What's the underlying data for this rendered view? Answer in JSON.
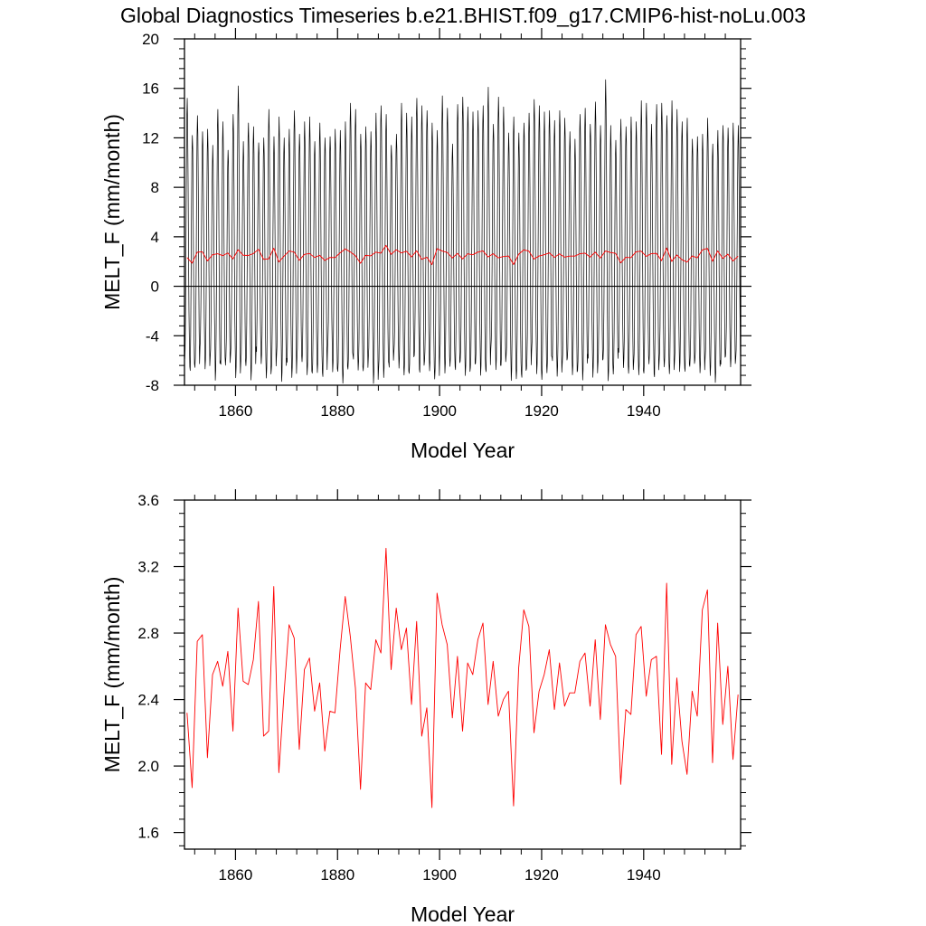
{
  "figure": {
    "title": "Global Diagnostics Timeseries b.e21.BHIST.f09_g17.CMIP6-hist-noLu.003"
  },
  "colors": {
    "monthly_series": "#000000",
    "annual_series": "#ff0000",
    "zero_line": "#000000",
    "frame": "#000000",
    "background": "#ffffff"
  },
  "chart_data": [
    {
      "type": "line",
      "xlabel": "Model Year",
      "ylabel": "MELT_F (mm/month)",
      "xlim": [
        1850,
        1959
      ],
      "ylim": [
        -8,
        20
      ],
      "x_ticks": [
        1860,
        1880,
        1900,
        1920,
        1940
      ],
      "x_tick_labels": [
        "1860",
        "1880",
        "1900",
        "1920",
        "1940"
      ],
      "y_ticks": [
        -8,
        -4,
        0,
        4,
        8,
        12,
        16,
        20
      ],
      "y_tick_labels": [
        "-8",
        "-4",
        "0",
        "4",
        "8",
        "12",
        "16",
        "20"
      ],
      "reference_line_y": 0,
      "grid": false,
      "series": [
        {
          "color": "#000000",
          "description_of_data": "monthly values, one strong annual cycle per year",
          "year_start": 1850,
          "annual_peaks": [
            15.2,
            12.2,
            13.8,
            12.5,
            12.7,
            11.4,
            14.3,
            13.3,
            11.0,
            13.9,
            16.2,
            11.7,
            13.2,
            12.9,
            11.6,
            12.0,
            14.3,
            12.1,
            13.7,
            12.0,
            12.7,
            14.2,
            12.3,
            13.3,
            13.7,
            11.7,
            13.2,
            12.0,
            12.1,
            12.7,
            12.6,
            13.3,
            14.8,
            14.3,
            12.3,
            12.9,
            12.5,
            14.0,
            14.6,
            13.9,
            11.4,
            12.3,
            14.8,
            14.0,
            13.7,
            15.2,
            14.6,
            14.2,
            13.2,
            12.6,
            15.4,
            14.4,
            11.5,
            14.7,
            15.3,
            14.5,
            14.1,
            14.2,
            14.6,
            16.1,
            13.1,
            15.3,
            14.5,
            12.4,
            13.7,
            12.4,
            13.2,
            14.0,
            15.1,
            14.6,
            14.1,
            14.2,
            13.4,
            14.2,
            13.6,
            12.5,
            11.9,
            13.9,
            14.4,
            13.1,
            14.9,
            13.0,
            16.7,
            13.0,
            11.8,
            13.5,
            12.9,
            13.7,
            13.3,
            15.0,
            14.8,
            13.1,
            14.7,
            14.8,
            13.8,
            15.0,
            14.3,
            13.3,
            13.6,
            11.9,
            12.1,
            12.3,
            13.6,
            11.5,
            12.6,
            13.0,
            12.8,
            13.2,
            13.0
          ],
          "annual_troughs": [
            -5.4,
            -6.9,
            -6.8,
            -5.0,
            -6.6,
            -5.5,
            -7.2,
            -6.5,
            -6.7,
            -5.7,
            -7.4,
            -6.0,
            -6.1,
            -7.1,
            -5.3,
            -6.5,
            -7.5,
            -6.6,
            -5.4,
            -7.3,
            -6.3,
            -7.7,
            -5.9,
            -6.1,
            -7.0,
            -6.7,
            -6.5,
            -7.4,
            -5.2,
            -7.0,
            -6.8,
            -7.6,
            -6.3,
            -6.1,
            -7.1,
            -7.0,
            -5.7,
            -7.7,
            -6.4,
            -6.9,
            -6.6,
            -5.6,
            -6.7,
            -7.1,
            -6.8,
            -5.2,
            -7.2,
            -6.4,
            -7.0,
            -7.5,
            -5.3,
            -6.7,
            -6.0,
            -6.9,
            -6.3,
            -7.3,
            -6.5,
            -6.0,
            -6.8,
            -7.2,
            -5.4,
            -6.9,
            -6.4,
            -5.5,
            -7.3,
            -7.0,
            -7.5,
            -6.9,
            -5.3,
            -7.0,
            -7.3,
            -6.6,
            -6.2,
            -7.6,
            -6.4,
            -5.8,
            -7.0,
            -6.5,
            -7.1,
            -5.9,
            -7.6,
            -6.3,
            -5.8,
            -7.4,
            -6.7,
            -5.5,
            -6.9,
            -7.2,
            -6.2,
            -7.0,
            -6.7,
            -5.8,
            -7.5,
            -6.3,
            -6.6,
            -7.0,
            -5.9,
            -6.5,
            -7.1,
            -6.8,
            -6.1,
            -7.0,
            -5.7,
            -6.9,
            -7.3,
            -6.4,
            -5.9,
            -6.6,
            -5.8
          ]
        },
        {
          "color": "#ff0000",
          "description_of_data": "annual mean",
          "x_start": 1850.5,
          "x_step": 1,
          "values": [
            2.32,
            1.87,
            2.75,
            2.79,
            2.05,
            2.55,
            2.63,
            2.48,
            2.69,
            2.21,
            2.95,
            2.51,
            2.49,
            2.64,
            2.99,
            2.18,
            2.21,
            3.08,
            1.96,
            2.43,
            2.85,
            2.77,
            2.1,
            2.58,
            2.65,
            2.33,
            2.5,
            2.09,
            2.33,
            2.32,
            2.7,
            3.02,
            2.78,
            2.47,
            1.86,
            2.5,
            2.46,
            2.76,
            2.68,
            3.31,
            2.58,
            2.95,
            2.7,
            2.83,
            2.37,
            2.87,
            2.18,
            2.35,
            1.75,
            3.04,
            2.85,
            2.73,
            2.29,
            2.66,
            2.21,
            2.62,
            2.55,
            2.76,
            2.86,
            2.37,
            2.63,
            2.3,
            2.4,
            2.45,
            1.76,
            2.59,
            2.94,
            2.84,
            2.2,
            2.45,
            2.55,
            2.7,
            2.34,
            2.62,
            2.36,
            2.44,
            2.44,
            2.63,
            2.68,
            2.36,
            2.76,
            2.28,
            2.85,
            2.73,
            2.66,
            1.89,
            2.34,
            2.31,
            2.79,
            2.84,
            2.42,
            2.64,
            2.66,
            2.07,
            3.1,
            2.01,
            2.53,
            2.15,
            1.95,
            2.45,
            2.3,
            2.94,
            3.06,
            2.02,
            2.86,
            2.25,
            2.6,
            2.04,
            2.43
          ]
        }
      ]
    },
    {
      "type": "line",
      "xlabel": "Model Year",
      "ylabel": "MELT_F (mm/month)",
      "xlim": [
        1850,
        1959
      ],
      "ylim": [
        1.5,
        3.6
      ],
      "x_ticks": [
        1860,
        1880,
        1900,
        1920,
        1940
      ],
      "x_tick_labels": [
        "1860",
        "1880",
        "1900",
        "1920",
        "1940"
      ],
      "y_ticks": [
        1.6,
        2.0,
        2.4,
        2.8,
        3.2,
        3.6
      ],
      "y_tick_labels": [
        "1.6",
        "2.0",
        "2.4",
        "2.8",
        "3.2",
        "3.6"
      ],
      "grid": false,
      "series": [
        {
          "color": "#ff0000",
          "description_of_data": "annual mean",
          "x_start": 1850.5,
          "x_step": 1,
          "values": [
            2.32,
            1.87,
            2.75,
            2.79,
            2.05,
            2.55,
            2.63,
            2.48,
            2.69,
            2.21,
            2.95,
            2.51,
            2.49,
            2.64,
            2.99,
            2.18,
            2.21,
            3.08,
            1.96,
            2.43,
            2.85,
            2.77,
            2.1,
            2.58,
            2.65,
            2.33,
            2.5,
            2.09,
            2.33,
            2.32,
            2.7,
            3.02,
            2.78,
            2.47,
            1.86,
            2.5,
            2.46,
            2.76,
            2.68,
            3.31,
            2.58,
            2.95,
            2.7,
            2.83,
            2.37,
            2.87,
            2.18,
            2.35,
            1.75,
            3.04,
            2.85,
            2.73,
            2.29,
            2.66,
            2.21,
            2.62,
            2.55,
            2.76,
            2.86,
            2.37,
            2.63,
            2.3,
            2.4,
            2.45,
            1.76,
            2.59,
            2.94,
            2.84,
            2.2,
            2.45,
            2.55,
            2.7,
            2.34,
            2.62,
            2.36,
            2.44,
            2.44,
            2.63,
            2.68,
            2.36,
            2.76,
            2.28,
            2.85,
            2.73,
            2.66,
            1.89,
            2.34,
            2.31,
            2.79,
            2.84,
            2.42,
            2.64,
            2.66,
            2.07,
            3.1,
            2.01,
            2.53,
            2.15,
            1.95,
            2.45,
            2.3,
            2.94,
            3.06,
            2.02,
            2.86,
            2.25,
            2.6,
            2.04,
            2.43
          ]
        }
      ]
    }
  ]
}
